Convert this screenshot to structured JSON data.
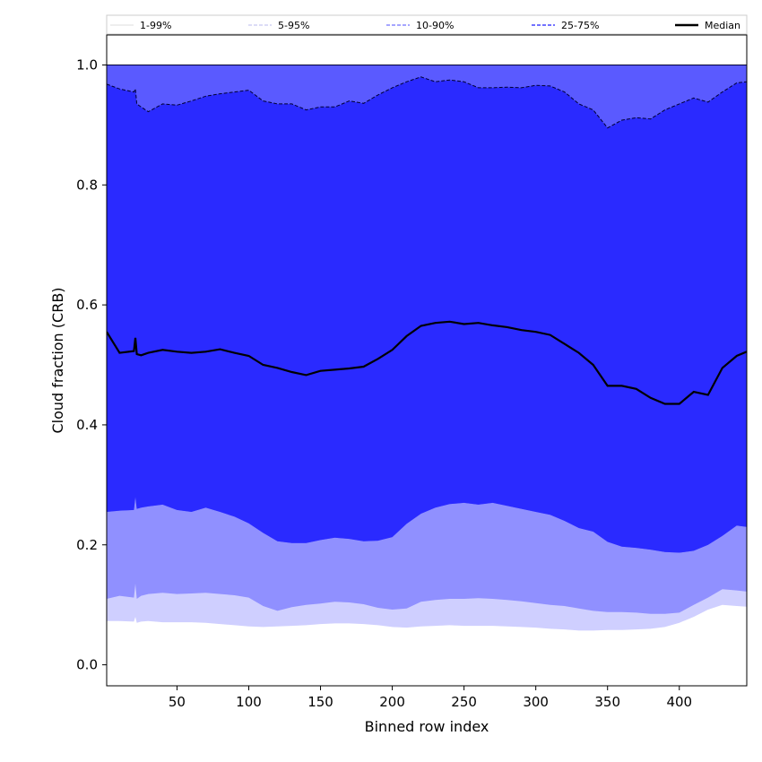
{
  "chart_data": {
    "type": "area",
    "xlabel": "Binned row index",
    "ylabel": "Cloud fraction (CRB)",
    "xlim": [
      1,
      447
    ],
    "ylim": [
      -0.035,
      1.05
    ],
    "xticks": [
      50,
      100,
      150,
      200,
      250,
      300,
      350,
      400
    ],
    "yticks": [
      0.0,
      0.2,
      0.4,
      0.6,
      0.8,
      1.0
    ],
    "ytick_labels": [
      "0.0",
      "0.2",
      "0.4",
      "0.6",
      "0.8",
      "1.0"
    ],
    "grid": false,
    "legend_position": "top, horizontal",
    "x": [
      1,
      10,
      20,
      21,
      22,
      25,
      30,
      40,
      50,
      60,
      70,
      80,
      90,
      100,
      110,
      120,
      130,
      140,
      150,
      160,
      170,
      180,
      190,
      200,
      210,
      220,
      230,
      240,
      250,
      260,
      270,
      280,
      290,
      300,
      310,
      320,
      330,
      340,
      350,
      360,
      370,
      380,
      390,
      400,
      410,
      420,
      430,
      440,
      447
    ],
    "bands": [
      {
        "name": "1-99%",
        "fill": "#ffffff",
        "line_color": "#dddddd",
        "lower": [
          0.03,
          0.03,
          0.033,
          0.045,
          0.015,
          0.015,
          0.017,
          0.018,
          0.019,
          0.02,
          0.02,
          0.021,
          0.022,
          0.023,
          0.025,
          0.027,
          0.028,
          0.03,
          0.031,
          0.032,
          0.031,
          0.031,
          0.031,
          0.03,
          0.029,
          0.029,
          0.029,
          0.029,
          0.029,
          0.029,
          0.028,
          0.027,
          0.026,
          0.025,
          0.024,
          0.022,
          0.021,
          0.02,
          0.02,
          0.02,
          0.021,
          0.021,
          0.025,
          0.037,
          0.045,
          0.05,
          0.057,
          0.061,
          0.062
        ],
        "upper": [
          1.0,
          1.0,
          1.0,
          1.0,
          1.0,
          1.0,
          1.0,
          1.0,
          1.0,
          1.0,
          1.0,
          1.0,
          1.0,
          1.0,
          1.0,
          1.0,
          1.0,
          1.0,
          1.0,
          1.0,
          1.0,
          1.0,
          1.0,
          1.0,
          1.0,
          1.0,
          1.0,
          1.0,
          1.0,
          1.0,
          1.0,
          1.0,
          1.0,
          1.0,
          1.0,
          1.0,
          1.0,
          1.0,
          1.0,
          1.0,
          1.0,
          1.0,
          1.0,
          1.0,
          1.0,
          1.0,
          1.0,
          1.0,
          1.0
        ]
      },
      {
        "name": "5-95%",
        "fill": "#cfcfff",
        "line_color": "#b8b8ee",
        "lower": [
          0.073,
          0.073,
          0.072,
          0.08,
          0.07,
          0.072,
          0.073,
          0.071,
          0.071,
          0.071,
          0.07,
          0.068,
          0.066,
          0.064,
          0.063,
          0.064,
          0.065,
          0.066,
          0.068,
          0.069,
          0.069,
          0.068,
          0.066,
          0.063,
          0.062,
          0.064,
          0.065,
          0.066,
          0.065,
          0.065,
          0.065,
          0.064,
          0.063,
          0.062,
          0.06,
          0.059,
          0.057,
          0.057,
          0.058,
          0.058,
          0.059,
          0.06,
          0.063,
          0.07,
          0.08,
          0.092,
          0.1,
          0.098,
          0.097
        ],
        "upper": [
          1.0,
          1.0,
          1.0,
          1.0,
          1.0,
          1.0,
          1.0,
          1.0,
          1.0,
          1.0,
          1.0,
          1.0,
          1.0,
          1.0,
          1.0,
          1.0,
          1.0,
          1.0,
          1.0,
          1.0,
          1.0,
          1.0,
          1.0,
          1.0,
          1.0,
          1.0,
          1.0,
          1.0,
          1.0,
          1.0,
          1.0,
          1.0,
          1.0,
          1.0,
          1.0,
          1.0,
          1.0,
          1.0,
          1.0,
          1.0,
          1.0,
          1.0,
          1.0,
          1.0,
          1.0,
          1.0,
          1.0,
          1.0,
          1.0
        ]
      },
      {
        "name": "10-90%",
        "fill": "#9090ff",
        "line_color": "#8080ee",
        "lower": [
          0.11,
          0.115,
          0.112,
          0.135,
          0.11,
          0.115,
          0.118,
          0.12,
          0.118,
          0.119,
          0.12,
          0.118,
          0.116,
          0.112,
          0.098,
          0.09,
          0.096,
          0.1,
          0.102,
          0.105,
          0.104,
          0.101,
          0.095,
          0.092,
          0.094,
          0.105,
          0.108,
          0.11,
          0.11,
          0.111,
          0.11,
          0.108,
          0.106,
          0.103,
          0.1,
          0.098,
          0.094,
          0.09,
          0.088,
          0.088,
          0.087,
          0.085,
          0.085,
          0.087,
          0.1,
          0.112,
          0.126,
          0.124,
          0.122
        ],
        "upper": [
          1.0,
          1.0,
          1.0,
          1.0,
          1.0,
          1.0,
          1.0,
          1.0,
          1.0,
          1.0,
          1.0,
          1.0,
          1.0,
          1.0,
          1.0,
          1.0,
          1.0,
          1.0,
          1.0,
          1.0,
          1.0,
          1.0,
          1.0,
          1.0,
          1.0,
          1.0,
          1.0,
          1.0,
          1.0,
          1.0,
          1.0,
          1.0,
          1.0,
          1.0,
          1.0,
          1.0,
          1.0,
          1.0,
          1.0,
          1.0,
          1.0,
          1.0,
          1.0,
          1.0,
          1.0,
          1.0,
          1.0,
          1.0,
          1.0
        ]
      },
      {
        "name": "25-75%",
        "fill": "#5a5aff",
        "line_color": "#5555ff",
        "lower": [
          0.255,
          0.257,
          0.258,
          0.28,
          0.26,
          0.262,
          0.264,
          0.267,
          0.258,
          0.255,
          0.262,
          0.255,
          0.247,
          0.236,
          0.22,
          0.206,
          0.203,
          0.203,
          0.208,
          0.212,
          0.21,
          0.206,
          0.207,
          0.213,
          0.235,
          0.252,
          0.262,
          0.268,
          0.27,
          0.267,
          0.27,
          0.265,
          0.26,
          0.255,
          0.25,
          0.24,
          0.228,
          0.222,
          0.205,
          0.197,
          0.195,
          0.192,
          0.188,
          0.187,
          0.19,
          0.2,
          0.215,
          0.232,
          0.23
        ],
        "upper": [
          0.968,
          0.96,
          0.955,
          0.96,
          0.935,
          0.93,
          0.922,
          0.935,
          0.933,
          0.94,
          0.948,
          0.952,
          0.955,
          0.958,
          0.94,
          0.935,
          0.935,
          0.925,
          0.93,
          0.93,
          0.94,
          0.936,
          0.95,
          0.962,
          0.972,
          0.98,
          0.972,
          0.975,
          0.972,
          0.962,
          0.962,
          0.963,
          0.962,
          0.966,
          0.965,
          0.955,
          0.935,
          0.925,
          0.895,
          0.908,
          0.912,
          0.91,
          0.925,
          0.935,
          0.945,
          0.938,
          0.955,
          0.97,
          0.972
        ]
      },
      {
        "name": "Median",
        "fill": "#2a2aff",
        "line_color": "#000000",
        "line": [
          0.555,
          0.52,
          0.523,
          0.545,
          0.518,
          0.516,
          0.52,
          0.525,
          0.522,
          0.52,
          0.522,
          0.526,
          0.52,
          0.515,
          0.5,
          0.495,
          0.488,
          0.483,
          0.49,
          0.492,
          0.494,
          0.497,
          0.51,
          0.525,
          0.548,
          0.565,
          0.57,
          0.572,
          0.568,
          0.57,
          0.566,
          0.563,
          0.558,
          0.555,
          0.55,
          0.535,
          0.52,
          0.5,
          0.465,
          0.465,
          0.46,
          0.445,
          0.435,
          0.435,
          0.455,
          0.45,
          0.495,
          0.515,
          0.522
        ]
      }
    ],
    "top_line": 1.0,
    "legend": [
      {
        "label": "1-99%",
        "color": "#dddddd",
        "style": "solid",
        "width": 1
      },
      {
        "label": "5-95%",
        "color": "#b8b8ee",
        "style": "dashed",
        "width": 1
      },
      {
        "label": "10-90%",
        "color": "#8888ff",
        "style": "dashed",
        "width": 1.5
      },
      {
        "label": "25-75%",
        "color": "#4444ff",
        "style": "dashed",
        "width": 1.5
      },
      {
        "label": "Median",
        "color": "#000000",
        "style": "solid",
        "width": 2.5
      }
    ]
  }
}
